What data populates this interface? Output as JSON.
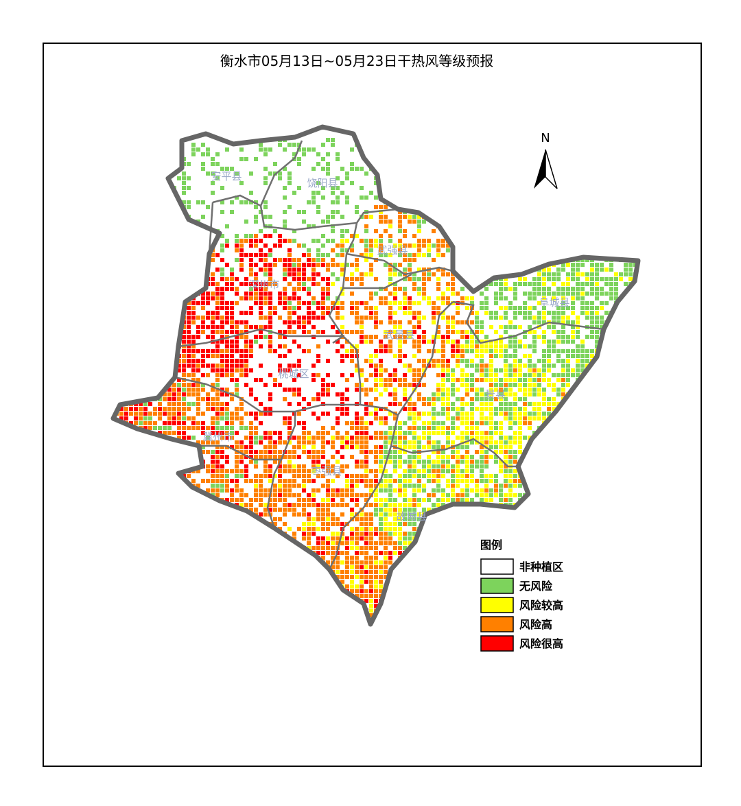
{
  "title": "衡水市05月13日~05月23日干热风等级预报",
  "north": "N",
  "regions": [
    {
      "name": "安平县"
    },
    {
      "name": "饶阳县"
    },
    {
      "name": "武强县"
    },
    {
      "name": "深州市"
    },
    {
      "name": "阜城县"
    },
    {
      "name": "武邑县"
    },
    {
      "name": "桃城区"
    },
    {
      "name": "景县"
    },
    {
      "name": "冀州市"
    },
    {
      "name": "枣强县"
    },
    {
      "name": "故城县"
    }
  ],
  "legend": {
    "title": "图例",
    "items": [
      {
        "label": "非种植区",
        "color": "#ffffff"
      },
      {
        "label": "无风险",
        "color": "#7dd35c"
      },
      {
        "label": "风险较高",
        "color": "#ffff00"
      },
      {
        "label": "风险高",
        "color": "#ff8000"
      },
      {
        "label": "风险很高",
        "color": "#ff0000"
      }
    ]
  }
}
